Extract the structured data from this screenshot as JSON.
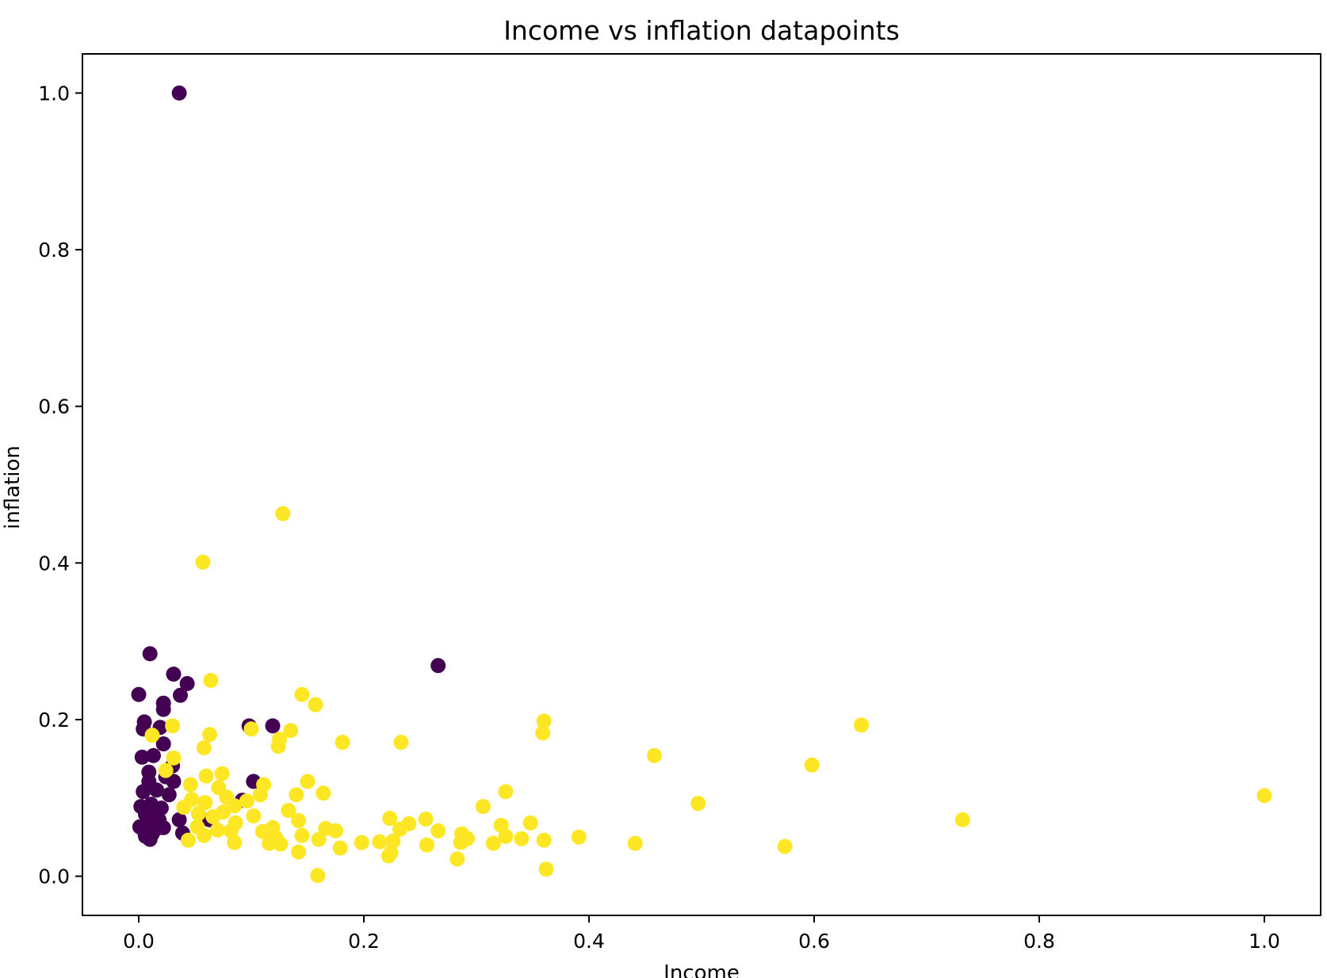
{
  "chart_data": {
    "type": "scatter",
    "title": "Income vs inflation datapoints",
    "xlabel": "Income",
    "ylabel": "inflation",
    "xlim": [
      -0.05,
      1.05
    ],
    "ylim": [
      -0.05,
      1.05
    ],
    "xticks": [
      "0.0",
      "0.2",
      "0.4",
      "0.6",
      "0.8",
      "1.0"
    ],
    "yticks": [
      "0.0",
      "0.2",
      "0.4",
      "0.6",
      "0.8",
      "1.0"
    ],
    "grid": false,
    "legend": "none",
    "series": [
      {
        "color": "#440154",
        "points": [
          [
            0.036,
            1.0
          ],
          [
            0.266,
            0.269
          ],
          [
            0.01,
            0.284
          ],
          [
            0.031,
            0.258
          ],
          [
            0.043,
            0.246
          ],
          [
            0.037,
            0.231
          ],
          [
            0.0,
            0.232
          ],
          [
            0.022,
            0.221
          ],
          [
            0.022,
            0.213
          ],
          [
            0.098,
            0.192
          ],
          [
            0.119,
            0.192
          ],
          [
            0.005,
            0.197
          ],
          [
            0.004,
            0.188
          ],
          [
            0.019,
            0.19
          ],
          [
            0.022,
            0.169
          ],
          [
            0.003,
            0.152
          ],
          [
            0.013,
            0.154
          ],
          [
            0.03,
            0.141
          ],
          [
            0.009,
            0.133
          ],
          [
            0.024,
            0.127
          ],
          [
            0.031,
            0.121
          ],
          [
            0.102,
            0.121
          ],
          [
            0.009,
            0.121
          ],
          [
            0.004,
            0.108
          ],
          [
            0.016,
            0.11
          ],
          [
            0.027,
            0.104
          ],
          [
            0.092,
            0.097
          ],
          [
            0.002,
            0.089
          ],
          [
            0.011,
            0.092
          ],
          [
            0.02,
            0.087
          ],
          [
            0.014,
            0.081
          ],
          [
            0.006,
            0.079
          ],
          [
            0.036,
            0.072
          ],
          [
            0.063,
            0.072
          ],
          [
            0.018,
            0.072
          ],
          [
            0.009,
            0.068
          ],
          [
            0.001,
            0.063
          ],
          [
            0.015,
            0.06
          ],
          [
            0.022,
            0.062
          ],
          [
            0.005,
            0.057
          ],
          [
            0.012,
            0.054
          ],
          [
            0.039,
            0.055
          ],
          [
            0.006,
            0.051
          ],
          [
            0.01,
            0.047
          ]
        ]
      },
      {
        "color": "#fde725",
        "points": [
          [
            0.128,
            0.463
          ],
          [
            0.057,
            0.401
          ],
          [
            0.064,
            0.25
          ],
          [
            0.145,
            0.232
          ],
          [
            0.157,
            0.219
          ],
          [
            0.36,
            0.198
          ],
          [
            0.642,
            0.193
          ],
          [
            0.03,
            0.192
          ],
          [
            0.1,
            0.188
          ],
          [
            0.135,
            0.186
          ],
          [
            0.359,
            0.183
          ],
          [
            0.012,
            0.18
          ],
          [
            0.063,
            0.181
          ],
          [
            0.125,
            0.175
          ],
          [
            0.181,
            0.171
          ],
          [
            0.233,
            0.171
          ],
          [
            0.124,
            0.166
          ],
          [
            0.058,
            0.164
          ],
          [
            0.458,
            0.154
          ],
          [
            0.031,
            0.151
          ],
          [
            0.598,
            0.142
          ],
          [
            0.024,
            0.135
          ],
          [
            0.074,
            0.131
          ],
          [
            0.06,
            0.128
          ],
          [
            0.15,
            0.121
          ],
          [
            0.046,
            0.117
          ],
          [
            0.111,
            0.117
          ],
          [
            0.071,
            0.113
          ],
          [
            0.326,
            0.108
          ],
          [
            0.164,
            0.106
          ],
          [
            0.108,
            0.104
          ],
          [
            0.14,
            0.104
          ],
          [
            1.0,
            0.103
          ],
          [
            0.078,
            0.101
          ],
          [
            0.047,
            0.098
          ],
          [
            0.096,
            0.096
          ],
          [
            0.059,
            0.094
          ],
          [
            0.497,
            0.093
          ],
          [
            0.085,
            0.09
          ],
          [
            0.306,
            0.089
          ],
          [
            0.04,
            0.088
          ],
          [
            0.133,
            0.084
          ],
          [
            0.075,
            0.082
          ],
          [
            0.053,
            0.08
          ],
          [
            0.102,
            0.077
          ],
          [
            0.066,
            0.076
          ],
          [
            0.223,
            0.074
          ],
          [
            0.255,
            0.073
          ],
          [
            0.732,
            0.072
          ],
          [
            0.142,
            0.071
          ],
          [
            0.348,
            0.068
          ],
          [
            0.24,
            0.067
          ],
          [
            0.086,
            0.068
          ],
          [
            0.322,
            0.065
          ],
          [
            0.052,
            0.063
          ],
          [
            0.119,
            0.062
          ],
          [
            0.166,
            0.061
          ],
          [
            0.07,
            0.059
          ],
          [
            0.232,
            0.06
          ],
          [
            0.266,
            0.058
          ],
          [
            0.11,
            0.057
          ],
          [
            0.082,
            0.058
          ],
          [
            0.175,
            0.058
          ],
          [
            0.287,
            0.054
          ],
          [
            0.145,
            0.052
          ],
          [
            0.058,
            0.052
          ],
          [
            0.326,
            0.051
          ],
          [
            0.391,
            0.05
          ],
          [
            0.34,
            0.048
          ],
          [
            0.122,
            0.049
          ],
          [
            0.16,
            0.047
          ],
          [
            0.292,
            0.048
          ],
          [
            0.044,
            0.046
          ],
          [
            0.226,
            0.045
          ],
          [
            0.214,
            0.044
          ],
          [
            0.36,
            0.046
          ],
          [
            0.198,
            0.043
          ],
          [
            0.085,
            0.043
          ],
          [
            0.116,
            0.042
          ],
          [
            0.286,
            0.043
          ],
          [
            0.315,
            0.042
          ],
          [
            0.441,
            0.042
          ],
          [
            0.126,
            0.041
          ],
          [
            0.256,
            0.04
          ],
          [
            0.574,
            0.038
          ],
          [
            0.179,
            0.036
          ],
          [
            0.142,
            0.031
          ],
          [
            0.224,
            0.03
          ],
          [
            0.222,
            0.026
          ],
          [
            0.283,
            0.022
          ],
          [
            0.362,
            0.009
          ],
          [
            0.159,
            0.001
          ]
        ]
      }
    ]
  }
}
